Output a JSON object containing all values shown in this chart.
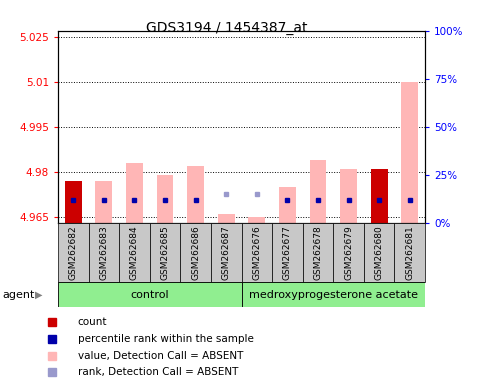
{
  "title": "GDS3194 / 1454387_at",
  "samples": [
    "GSM262682",
    "GSM262683",
    "GSM262684",
    "GSM262685",
    "GSM262686",
    "GSM262687",
    "GSM262676",
    "GSM262677",
    "GSM262678",
    "GSM262679",
    "GSM262680",
    "GSM262681"
  ],
  "n_control": 6,
  "n_treatment": 6,
  "ylim_left": [
    4.963,
    5.027
  ],
  "ylim_right": [
    0,
    100
  ],
  "yticks_left": [
    4.965,
    4.98,
    4.995,
    5.01,
    5.025
  ],
  "yticks_right": [
    0,
    25,
    50,
    75,
    100
  ],
  "left_tick_labels": [
    "4.965",
    "4.98",
    "4.995",
    "5.01",
    "5.025"
  ],
  "right_tick_labels": [
    "0%",
    "25%",
    "50%",
    "75%",
    "100%"
  ],
  "base": 4.963,
  "value_heights": [
    4.977,
    4.977,
    4.983,
    4.979,
    4.982,
    4.966,
    4.965,
    4.975,
    4.984,
    4.981,
    4.981,
    5.01
  ],
  "count_heights": [
    4.977,
    4.963,
    4.963,
    4.963,
    4.963,
    4.963,
    4.963,
    4.963,
    4.963,
    4.963,
    4.981,
    4.963
  ],
  "rank_positions": [
    4.9705,
    4.9705,
    4.9705,
    4.9705,
    4.9705,
    4.9725,
    4.9725,
    4.9705,
    4.9705,
    4.9705,
    4.9705,
    4.9705
  ],
  "count_is_present": [
    true,
    false,
    false,
    false,
    false,
    false,
    false,
    false,
    false,
    false,
    true,
    false
  ],
  "rank_is_absent": [
    false,
    false,
    false,
    false,
    false,
    true,
    true,
    false,
    false,
    false,
    false,
    false
  ],
  "bar_width": 0.55,
  "value_color": "#FFB6B6",
  "count_color": "#CC0000",
  "rank_color_present": "#0000AA",
  "rank_color_absent": "#9999CC",
  "cell_bg_color": "#C8C8C8",
  "group_color": "#90EE90",
  "agent_label": "agent",
  "control_label": "control",
  "treatment_label": "medroxyprogesterone acetate",
  "legend_items": [
    [
      "#CC0000",
      "count"
    ],
    [
      "#0000AA",
      "percentile rank within the sample"
    ],
    [
      "#FFB6B6",
      "value, Detection Call = ABSENT"
    ],
    [
      "#9999CC",
      "rank, Detection Call = ABSENT"
    ]
  ]
}
